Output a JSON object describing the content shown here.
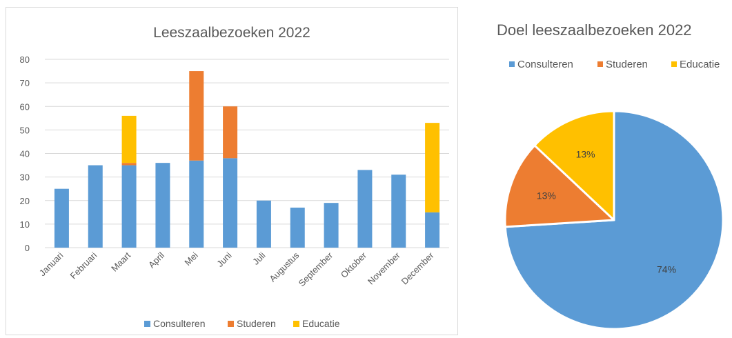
{
  "chart_data": [
    {
      "type": "bar",
      "stacked": true,
      "title": "Leeszaalbezoeken 2022",
      "categories": [
        "Januari",
        "Februari",
        "Maart",
        "April",
        "Mei",
        "Juni",
        "Juli",
        "Augustus",
        "September",
        "Oktober",
        "November",
        "December"
      ],
      "series": [
        {
          "name": "Consulteren",
          "color": "#5b9bd5",
          "values": [
            25,
            35,
            35,
            36,
            37,
            38,
            20,
            17,
            19,
            33,
            31,
            15
          ]
        },
        {
          "name": "Studeren",
          "color": "#ed7d31",
          "values": [
            0,
            0,
            1,
            0,
            38,
            22,
            0,
            0,
            0,
            0,
            0,
            0
          ]
        },
        {
          "name": "Educatie",
          "color": "#ffc000",
          "values": [
            0,
            0,
            20,
            0,
            0,
            0,
            0,
            0,
            0,
            0,
            0,
            38
          ]
        }
      ],
      "ylim": [
        0,
        80
      ],
      "yticks": [
        0,
        10,
        20,
        30,
        40,
        50,
        60,
        70,
        80
      ],
      "grid": true,
      "legend": "bottom"
    },
    {
      "type": "pie",
      "title": "Doel leeszaalbezoeken 2022",
      "slices": [
        {
          "name": "Consulteren",
          "value": 74,
          "label": "74%",
          "color": "#5b9bd5"
        },
        {
          "name": "Studeren",
          "value": 13,
          "label": "13%",
          "color": "#ed7d31"
        },
        {
          "name": "Educatie",
          "value": 13,
          "label": "13%",
          "color": "#ffc000"
        }
      ],
      "legend": "top"
    }
  ]
}
